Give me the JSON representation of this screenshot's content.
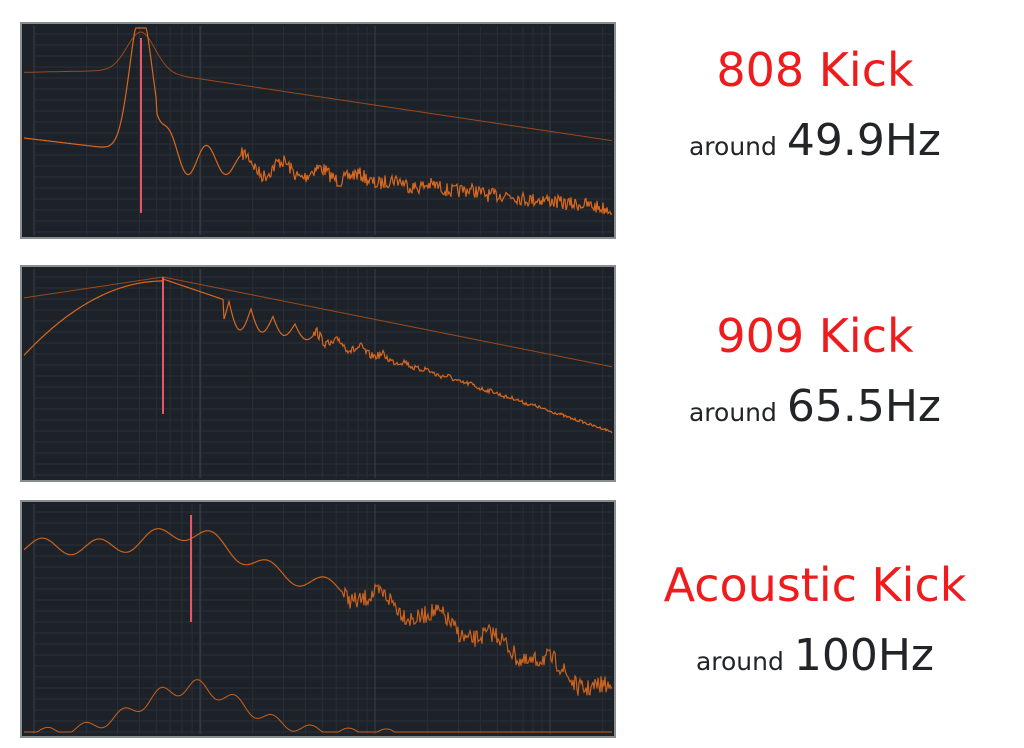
{
  "panels": [
    {
      "name": "808 Kick",
      "prefix": "around",
      "frequency": "49.9Hz"
    },
    {
      "name": "909 Kick",
      "prefix": "around",
      "frequency": "65.5Hz"
    },
    {
      "name": "Acoustic Kick",
      "prefix": "around",
      "frequency": "100Hz"
    }
  ]
}
